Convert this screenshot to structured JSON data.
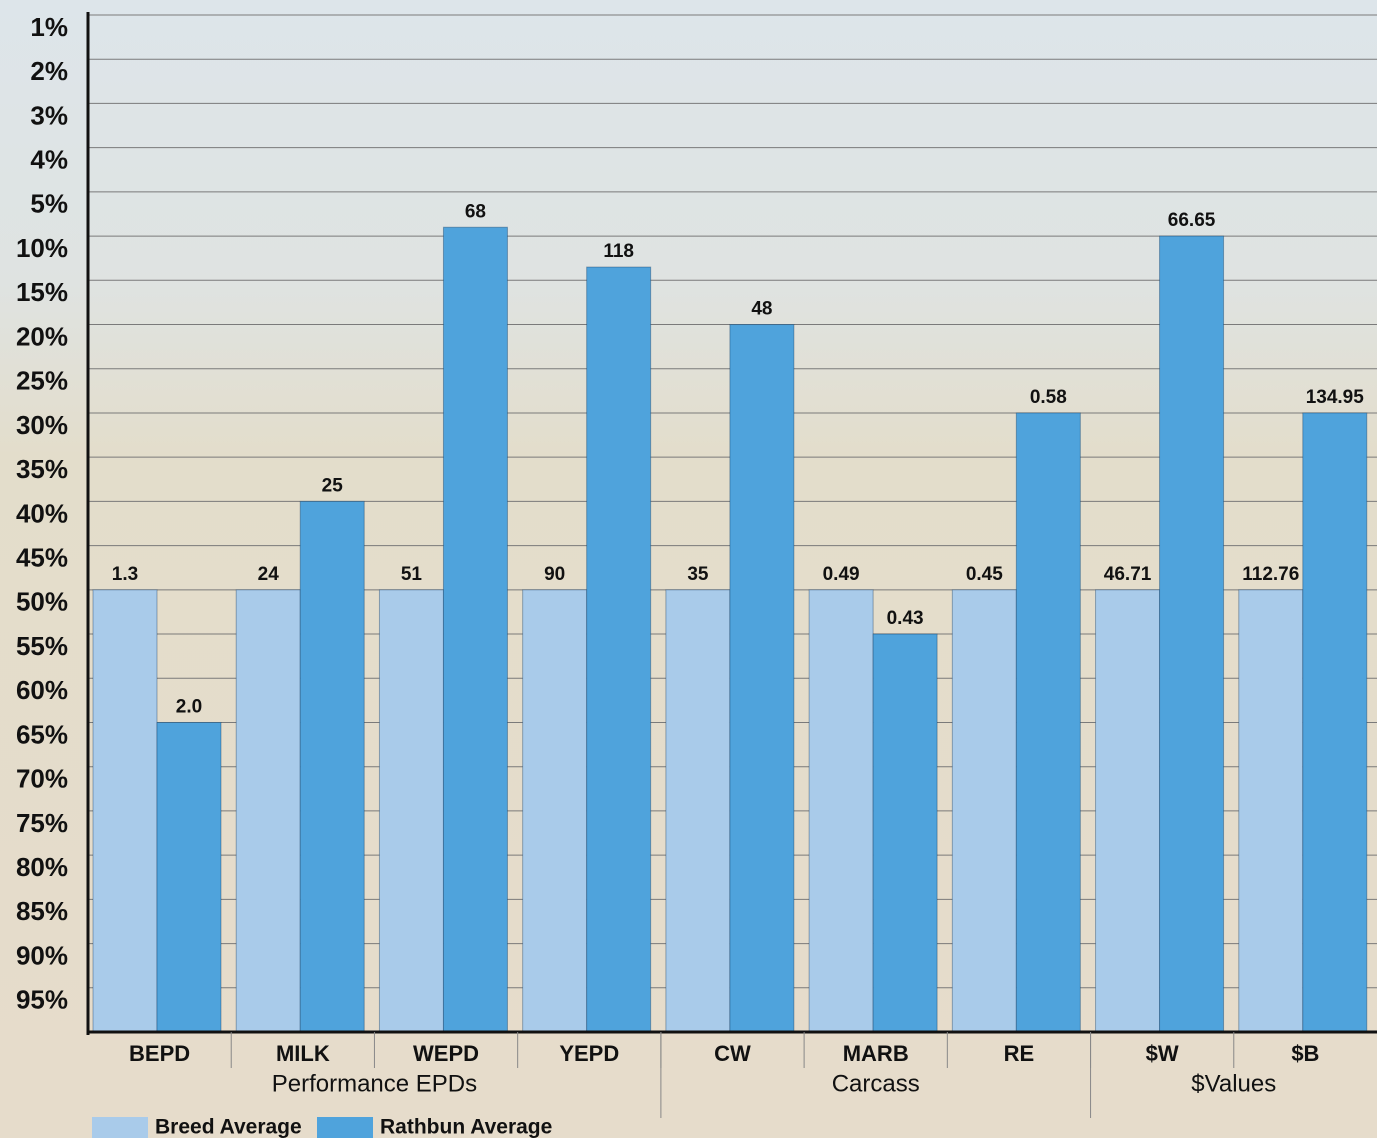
{
  "chart_data": {
    "type": "bar",
    "categories": [
      "BEPD",
      "MILK",
      "WEPD",
      "YEPD",
      "CW",
      "MARB",
      "RE",
      "$W",
      "$B"
    ],
    "groups": [
      {
        "label": "Performance EPDs",
        "categories": [
          "BEPD",
          "MILK",
          "WEPD",
          "YEPD"
        ]
      },
      {
        "label": "Carcass",
        "categories": [
          "CW",
          "MARB",
          "RE"
        ]
      },
      {
        "label": "$Values",
        "categories": [
          "$W",
          "$B"
        ]
      }
    ],
    "series": [
      {
        "name": "Breed Average",
        "color": "#a9cbea",
        "values": [
          50,
          50,
          50,
          50,
          50,
          50,
          50,
          50,
          50
        ],
        "value_labels": [
          "1.3",
          "24",
          "51",
          "90",
          "35",
          "0.49",
          "0.45",
          "46.71",
          "112.76"
        ]
      },
      {
        "name": "Rathbun Average",
        "color": "#4fa3dc",
        "values": [
          65,
          40,
          9,
          13.5,
          20,
          55,
          30,
          10,
          30
        ],
        "value_labels": [
          "2.0",
          "25",
          "68",
          "118",
          "48",
          "0.43",
          "0.58",
          "66.65",
          "134.95"
        ]
      }
    ],
    "ylim": [
      1,
      100
    ],
    "yticks": [
      {
        "value": 1,
        "label": "1%"
      },
      {
        "value": 2,
        "label": "2%"
      },
      {
        "value": 3,
        "label": "3%"
      },
      {
        "value": 4,
        "label": "4%"
      },
      {
        "value": 5,
        "label": "5%"
      },
      {
        "value": 10,
        "label": "10%"
      },
      {
        "value": 15,
        "label": "15%"
      },
      {
        "value": 20,
        "label": "20%"
      },
      {
        "value": 25,
        "label": "25%"
      },
      {
        "value": 30,
        "label": "30%"
      },
      {
        "value": 35,
        "label": "35%"
      },
      {
        "value": 40,
        "label": "40%"
      },
      {
        "value": 45,
        "label": "45%"
      },
      {
        "value": 50,
        "label": "50%"
      },
      {
        "value": 55,
        "label": "55%"
      },
      {
        "value": 60,
        "label": "60%"
      },
      {
        "value": 65,
        "label": "65%"
      },
      {
        "value": 70,
        "label": "70%"
      },
      {
        "value": 75,
        "label": "75%"
      },
      {
        "value": 80,
        "label": "80%"
      },
      {
        "value": 85,
        "label": "85%"
      },
      {
        "value": 90,
        "label": "90%"
      },
      {
        "value": 95,
        "label": "95%"
      }
    ],
    "grid": true
  }
}
